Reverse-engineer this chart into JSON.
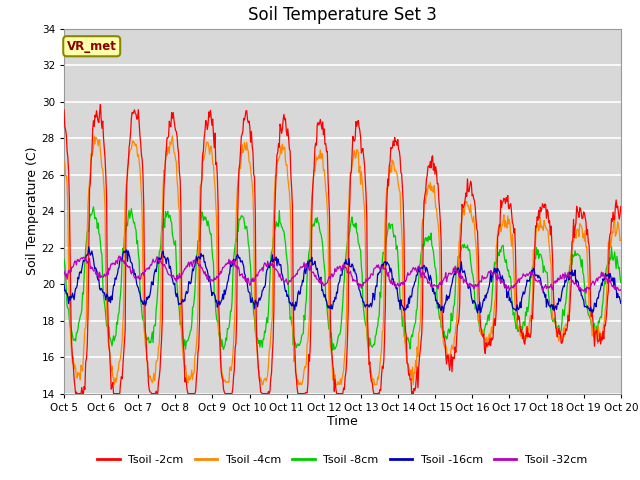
{
  "title": "Soil Temperature Set 3",
  "xlabel": "Time",
  "ylabel": "Soil Temperature (C)",
  "ylim": [
    14,
    34
  ],
  "plot_bg_color": "#d8d8d8",
  "grid_color": "white",
  "legend_labels": [
    "Tsoil -2cm",
    "Tsoil -4cm",
    "Tsoil -8cm",
    "Tsoil -16cm",
    "Tsoil -32cm"
  ],
  "line_colors": [
    "#ff0000",
    "#ff8800",
    "#00cc00",
    "#0000bb",
    "#bb00bb"
  ],
  "annotation_text": "VR_met",
  "annotation_bg": "#ffffaa",
  "annotation_border": "#888800",
  "xtick_labels": [
    "Oct 5",
    "Oct 6",
    "Oct 7",
    "Oct 8",
    "Oct 9",
    "Oct 10",
    "Oct 11",
    "Oct 12",
    "Oct 13",
    "Oct 14",
    "Oct 15",
    "Oct 16",
    "Oct 17",
    "Oct 18",
    "Oct 19",
    "Oct 20"
  ],
  "title_fontsize": 12
}
